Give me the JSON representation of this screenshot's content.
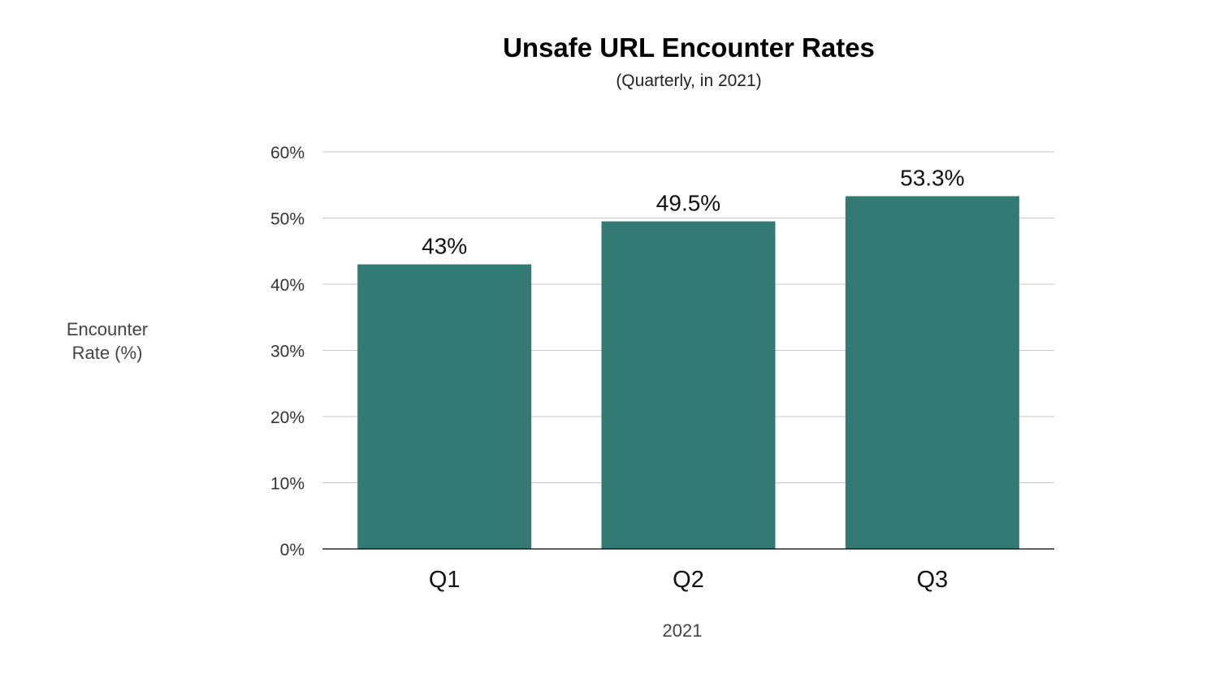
{
  "chart_data": {
    "type": "bar",
    "title": "Unsafe URL Encounter Rates",
    "subtitle": "(Quarterly, in 2021)",
    "xlabel": "2021",
    "ylabel_lines": [
      "Encounter",
      "Rate (%)"
    ],
    "categories": [
      "Q1",
      "Q2",
      "Q3"
    ],
    "values": [
      43,
      49.5,
      53.3
    ],
    "data_labels": [
      "43%",
      "49.5%",
      "53.3%"
    ],
    "ylim": [
      0,
      60
    ],
    "yticks": [
      0,
      10,
      20,
      30,
      40,
      50,
      60
    ],
    "ytick_labels": [
      "0%",
      "10%",
      "20%",
      "30%",
      "40%",
      "50%",
      "60%"
    ],
    "grid": true,
    "legend": false,
    "bar_color": "#347A74",
    "grid_color": "#C8C8C8",
    "axis_color": "#000000"
  }
}
